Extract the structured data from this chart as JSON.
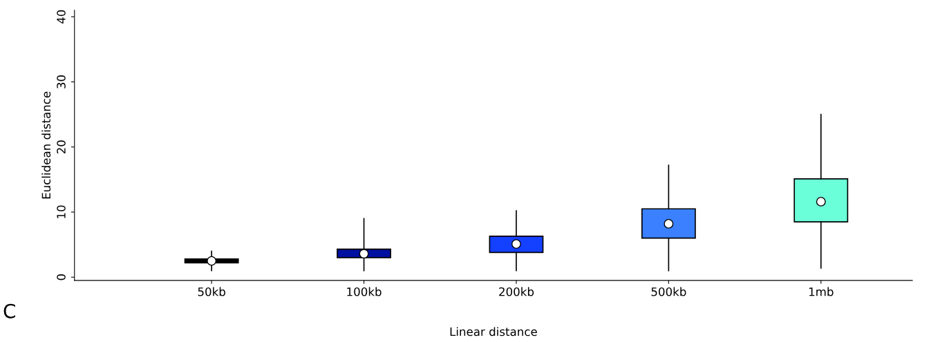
{
  "chart_data": {
    "type": "box",
    "xlabel": "Linear distance",
    "ylabel": "Euclidean distance",
    "categories": [
      "50kb",
      "100kb",
      "200kb",
      "500kb",
      "1mb"
    ],
    "colors": [
      "#000000",
      "#0010a0",
      "#1440ff",
      "#3a80ff",
      "#6affd8"
    ],
    "boxes": [
      {
        "low": 1.0,
        "q1": 2.2,
        "median": 2.5,
        "q3": 2.8,
        "high": 4.0
      },
      {
        "low": 1.0,
        "q1": 3.0,
        "median": 3.6,
        "q3": 4.3,
        "high": 9.0
      },
      {
        "low": 1.0,
        "q1": 3.8,
        "median": 5.1,
        "q3": 6.3,
        "high": 10.2
      },
      {
        "low": 1.0,
        "q1": 6.0,
        "median": 8.2,
        "q3": 10.5,
        "high": 17.2
      },
      {
        "low": 1.4,
        "q1": 8.5,
        "median": 11.6,
        "q3": 15.1,
        "high": 25.0
      }
    ],
    "ylim": [
      -0.5,
      41
    ],
    "yticks": [
      0,
      10,
      20,
      30,
      40
    ],
    "grid": false,
    "annotations": [
      "C"
    ]
  }
}
